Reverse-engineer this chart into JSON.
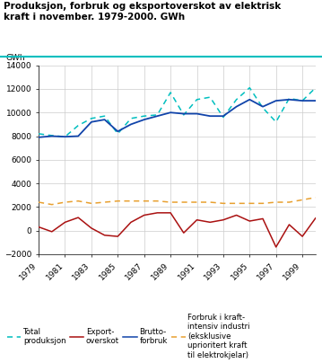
{
  "title": "Produksjon, forbruk og eksportoverskot av elektrisk\nkraft i november. 1979-2000. GWh",
  "ylabel": "GWh",
  "years": [
    1979,
    1980,
    1981,
    1982,
    1983,
    1984,
    1985,
    1986,
    1987,
    1988,
    1989,
    1990,
    1991,
    1992,
    1993,
    1994,
    1995,
    1996,
    1997,
    1998,
    1999,
    2000
  ],
  "total_produksjon": [
    8200,
    8050,
    7950,
    8900,
    9500,
    9700,
    8200,
    9500,
    9700,
    9800,
    11700,
    9800,
    11100,
    11300,
    9600,
    11100,
    12100,
    10400,
    9200,
    11200,
    11000,
    12100
  ],
  "export_overskot": [
    300,
    -100,
    700,
    1100,
    200,
    -400,
    -500,
    700,
    1300,
    1500,
    1500,
    -200,
    900,
    700,
    900,
    1300,
    800,
    1000,
    -1400,
    500,
    -500,
    1050
  ],
  "brutto_forbruk": [
    7900,
    8000,
    7950,
    8000,
    9200,
    9400,
    8400,
    9000,
    9400,
    9700,
    10000,
    9900,
    9900,
    9700,
    9700,
    10500,
    11100,
    10500,
    11000,
    11100,
    11000,
    11000
  ],
  "kraftintensiv": [
    2400,
    2200,
    2400,
    2500,
    2300,
    2400,
    2500,
    2500,
    2500,
    2500,
    2400,
    2400,
    2400,
    2400,
    2300,
    2300,
    2300,
    2300,
    2400,
    2400,
    2600,
    2800
  ],
  "colors": {
    "total_produksjon": "#00BFBF",
    "export_overskot": "#AA1111",
    "brutto_forbruk": "#1144AA",
    "kraftintensiv": "#E8A030"
  },
  "ylim": [
    -2000,
    14000
  ],
  "yticks": [
    -2000,
    0,
    2000,
    4000,
    6000,
    8000,
    10000,
    12000,
    14000
  ],
  "title_fontsize": 7.5,
  "axis_fontsize": 6.5,
  "legend_fontsize": 6.2,
  "background_color": "#ffffff",
  "grid_color": "#cccccc",
  "separator_color": "#00BFBF"
}
